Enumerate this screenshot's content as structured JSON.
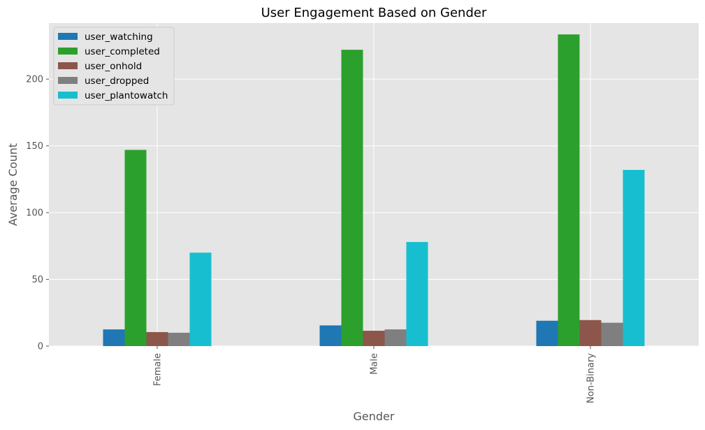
{
  "chart_data": {
    "type": "bar",
    "title": "User Engagement Based on Gender",
    "xlabel": "Gender",
    "ylabel": "Average Count",
    "categories": [
      "Female",
      "Male",
      "Non-Binary"
    ],
    "series": [
      {
        "name": "user_watching",
        "color": "#1f77b4",
        "values": [
          12.5,
          15.5,
          19
        ]
      },
      {
        "name": "user_completed",
        "color": "#2ca02c",
        "values": [
          147,
          222,
          233.5
        ]
      },
      {
        "name": "user_onhold",
        "color": "#8c564b",
        "values": [
          10.5,
          11.5,
          19.5
        ]
      },
      {
        "name": "user_dropped",
        "color": "#7f7f7f",
        "values": [
          10,
          12.5,
          17.5
        ]
      },
      {
        "name": "user_plantowatch",
        "color": "#17becf",
        "values": [
          70,
          78,
          132
        ]
      }
    ],
    "ylim": [
      0,
      242
    ],
    "yticks": [
      0,
      50,
      100,
      150,
      200
    ],
    "grid": true,
    "legend_position": "top-left",
    "style": {
      "plot_background": "#e5e5e5",
      "grid_color": "#ffffff"
    }
  }
}
